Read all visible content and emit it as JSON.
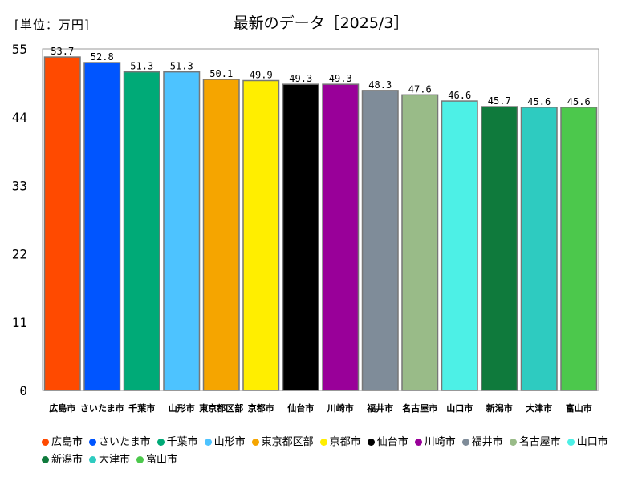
{
  "unit_label": "[単位：万円]",
  "title": "最新のデータ［2025/3］",
  "chart_data": {
    "type": "bar",
    "ylim": [
      0,
      55
    ],
    "yticks": [
      0,
      11,
      22,
      33,
      44,
      55
    ],
    "grid": false,
    "legend_position": "bottom",
    "categories": [
      "広島市",
      "さいたま市",
      "千葉市",
      "山形市",
      "東京都区部",
      "京都市",
      "仙台市",
      "川崎市",
      "福井市",
      "名古屋市",
      "山口市",
      "新潟市",
      "大津市",
      "富山市"
    ],
    "values": [
      53.7,
      52.8,
      51.3,
      51.3,
      50.1,
      49.9,
      49.3,
      49.3,
      48.3,
      47.6,
      46.6,
      45.7,
      45.6,
      45.6
    ],
    "value_labels": [
      "53.7",
      "52.8",
      "51.3",
      "51.3",
      "50.1",
      "49.9",
      "49.3",
      "49.3",
      "48.3",
      "47.6",
      "46.6",
      "45.7",
      "45.6",
      "45.6"
    ],
    "colors": [
      "#ff4a00",
      "#0055ff",
      "#00aa77",
      "#4dc3ff",
      "#f5a500",
      "#ffee00",
      "#000000",
      "#990099",
      "#7f8c99",
      "#99bb88",
      "#4df0e6",
      "#0f7a3c",
      "#2ecbc0",
      "#4cc84c"
    ]
  }
}
